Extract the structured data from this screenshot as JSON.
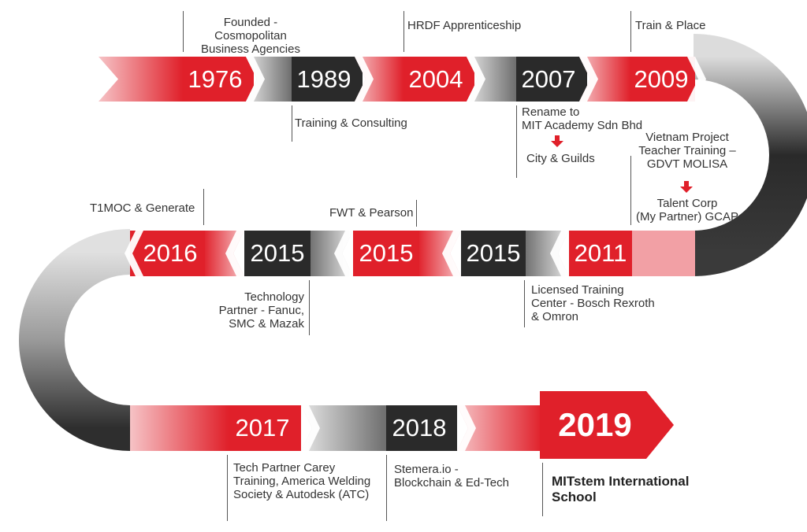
{
  "timeline": {
    "years": {
      "y1976": "1976",
      "y1989": "1989",
      "y2004": "2004",
      "y2007": "2007",
      "y2009": "2009",
      "y2011": "2011",
      "y2015a": "2015",
      "y2015b": "2015",
      "y2015c": "2015",
      "y2016": "2016",
      "y2017": "2017",
      "y2018": "2018",
      "y2019": "2019"
    },
    "events": {
      "founded": "Founded - Cosmopolitan\nBusiness Agencies",
      "training_consulting": "Training & Consulting",
      "hrdf": "HRDF Apprenticeship",
      "rename": "Rename to\nMIT Academy Sdn Bhd",
      "city_guilds": "City & Guilds",
      "train_place": "Train & Place",
      "vietnam": "Vietnam Project\nTeacher Training –\nGDVT MOLISA",
      "talent_corp": "Talent Corp\n(My Partner) GCAP",
      "licensed": "Licensed Training\nCenter - Bosch Rexroth\n& Omron",
      "fwt_pearson": "FWT & Pearson",
      "technology_partner": "Technology\nPartner - Fanuc,\nSMC & Mazak",
      "t1moc": "T1MOC & Generate",
      "tech_partner_carey": "Tech Partner Carey\nTraining, America Welding\nSociety & Autodesk (ATC)",
      "stemera": "Stemera.io -\nBlockchain & Ed-Tech",
      "mitstem": "MITstem International\nSchool"
    }
  },
  "colors": {
    "red": "#e0202a",
    "red_light": "#f2a0a5",
    "dark": "#2a2a2a",
    "grey": "#bdbdbd",
    "text": "#333333"
  }
}
